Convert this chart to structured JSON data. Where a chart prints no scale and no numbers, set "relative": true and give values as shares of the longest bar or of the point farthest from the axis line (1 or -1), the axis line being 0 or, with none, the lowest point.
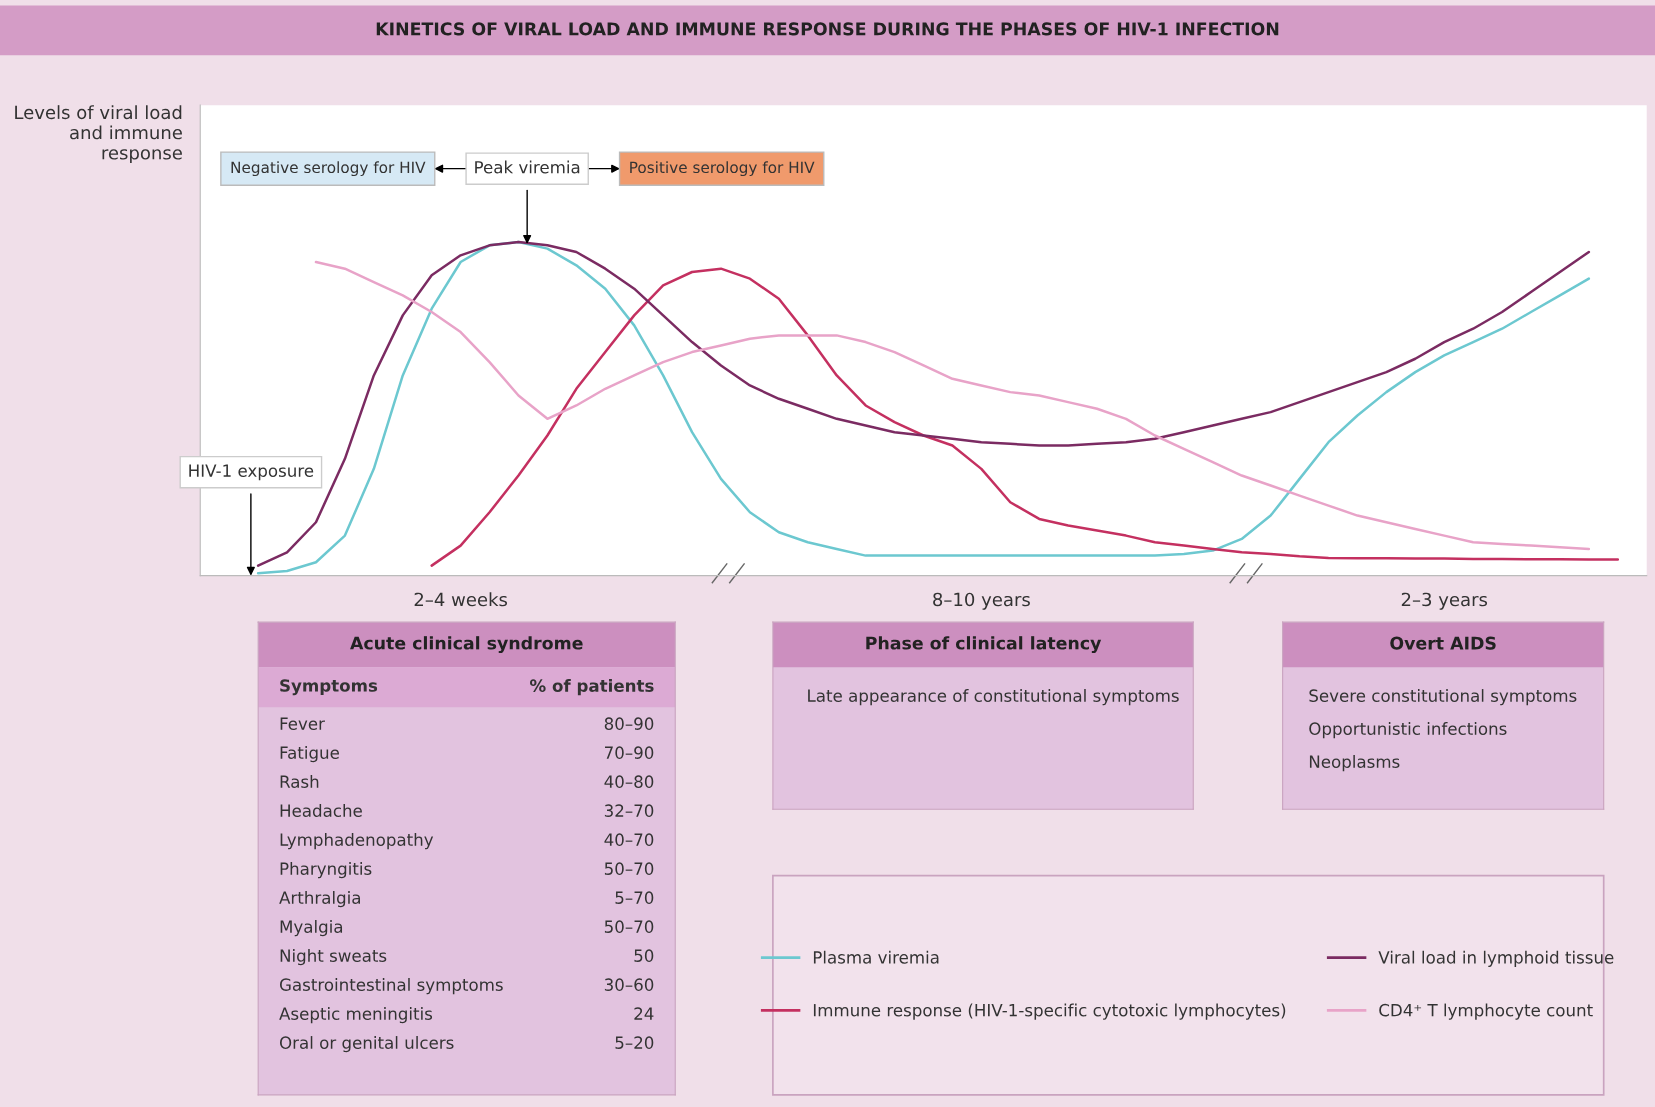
{
  "chart_data": [
    {
      "type": "line",
      "title": "KINETICS OF VIRAL LOAD AND IMMUNE RESPONSE DURING THE PHASES OF HIV-1 INFECTION",
      "ylabel": "Levels of viral load and immune response",
      "relative": true,
      "categories": [
        null,
        null,
        null,
        null,
        null,
        null,
        null,
        null,
        null,
        "2–4 weeks",
        null,
        null,
        null,
        null,
        null,
        null,
        null,
        null,
        null,
        null,
        null,
        null,
        null,
        null,
        null,
        null,
        null,
        "8–10 years",
        null,
        null,
        null,
        null,
        null,
        null,
        null,
        null,
        null,
        null,
        null,
        null,
        null,
        null,
        null,
        "2–3 years",
        null,
        null,
        null,
        null,
        null,
        null,
        null
      ],
      "legend": "bottom right",
      "series": [
        {
          "name": "Plasma viremia",
          "color": "#6cc8d0",
          "values": [
            null,
            null,
            0.007,
            0.014,
            0.04,
            0.12,
            0.32,
            0.6,
            0.8,
            0.94,
            0.99,
            1.0,
            0.98,
            0.93,
            0.86,
            0.75,
            0.6,
            0.43,
            0.29,
            0.19,
            0.13,
            0.1,
            0.08,
            0.06,
            0.06,
            0.06,
            0.06,
            0.06,
            0.06,
            0.06,
            0.06,
            0.06,
            0.06,
            0.06,
            0.065,
            0.075,
            0.11,
            0.18,
            0.29,
            0.4,
            0.48,
            0.55,
            0.61,
            0.66,
            0.7,
            0.74,
            0.79,
            0.84,
            0.89,
            null,
            null
          ]
        },
        {
          "name": "Immune response (HIV-1-specific cytotoxic lymphocytes)",
          "color": "#c43060",
          "values": [
            null,
            null,
            null,
            null,
            null,
            null,
            null,
            null,
            0.03,
            0.09,
            0.19,
            0.3,
            0.42,
            0.56,
            0.67,
            0.78,
            0.87,
            0.91,
            0.92,
            0.89,
            0.83,
            0.72,
            0.6,
            0.51,
            0.46,
            0.42,
            0.39,
            0.32,
            0.22,
            0.17,
            0.15,
            0.135,
            0.12,
            0.1,
            0.09,
            0.08,
            0.07,
            0.065,
            0.058,
            0.053,
            0.052,
            0.052,
            0.051,
            0.051,
            0.05,
            0.05,
            0.049,
            0.049,
            0.048,
            0.048,
            null
          ]
        },
        {
          "name": "Viral load in lymphoid tissue",
          "color": "#7b2b62",
          "values": [
            null,
            null,
            0.03,
            0.07,
            0.16,
            0.35,
            0.6,
            0.78,
            0.9,
            0.96,
            0.99,
            1.0,
            0.99,
            0.97,
            0.92,
            0.86,
            0.78,
            0.7,
            0.63,
            0.57,
            0.53,
            0.5,
            0.47,
            0.45,
            0.43,
            0.42,
            0.41,
            0.4,
            0.395,
            0.39,
            0.39,
            0.395,
            0.4,
            0.41,
            0.43,
            0.45,
            0.47,
            0.49,
            0.52,
            0.55,
            0.58,
            0.61,
            0.65,
            0.7,
            0.74,
            0.79,
            0.85,
            0.91,
            0.97,
            null,
            null
          ]
        },
        {
          "name": "CD4⁺ T lymphocyte count",
          "color": "#e8a3c8",
          "values": [
            null,
            null,
            null,
            null,
            0.94,
            0.92,
            0.88,
            0.84,
            0.79,
            0.73,
            0.64,
            0.54,
            0.47,
            0.51,
            0.56,
            0.6,
            0.64,
            0.67,
            0.69,
            0.71,
            0.72,
            0.72,
            0.72,
            0.7,
            0.67,
            0.63,
            0.59,
            0.57,
            0.55,
            0.54,
            0.52,
            0.5,
            0.47,
            0.42,
            0.38,
            0.34,
            0.3,
            0.27,
            0.24,
            0.21,
            0.18,
            0.16,
            0.14,
            0.12,
            0.1,
            0.095,
            0.09,
            0.085,
            0.08,
            null,
            null
          ]
        }
      ],
      "annotations": [
        "HIV-1 exposure",
        "Negative serology for HIV",
        "Peak viremia",
        "Positive serology for HIV"
      ]
    },
    {
      "type": "other",
      "title": "Acute clinical syndrome",
      "annotations": [
        "Symptoms",
        "% of patients",
        "Fever",
        "80–90",
        "Fatigue",
        "70–90",
        "Rash",
        "40–80",
        "Headache",
        "32–70",
        "Lymphadenopathy",
        "40–70",
        "Pharyngitis",
        "50–70",
        "Arthralgia",
        "5–70",
        "Myalgia",
        "50–70",
        "Night sweats",
        "50",
        "Gastrointestinal symptoms",
        "30–60",
        "Aseptic meningitis",
        "24",
        "Oral or genital ulcers",
        "5–20"
      ]
    },
    {
      "type": "other",
      "title": "Phase of clinical latency",
      "annotations": [
        "Late appearance of constitutional symptoms"
      ]
    },
    {
      "type": "other",
      "title": "Overt AIDS",
      "annotations": [
        "Severe constitutional symptoms",
        "Opportunistic infections",
        "Neoplasms"
      ]
    }
  ]
}
